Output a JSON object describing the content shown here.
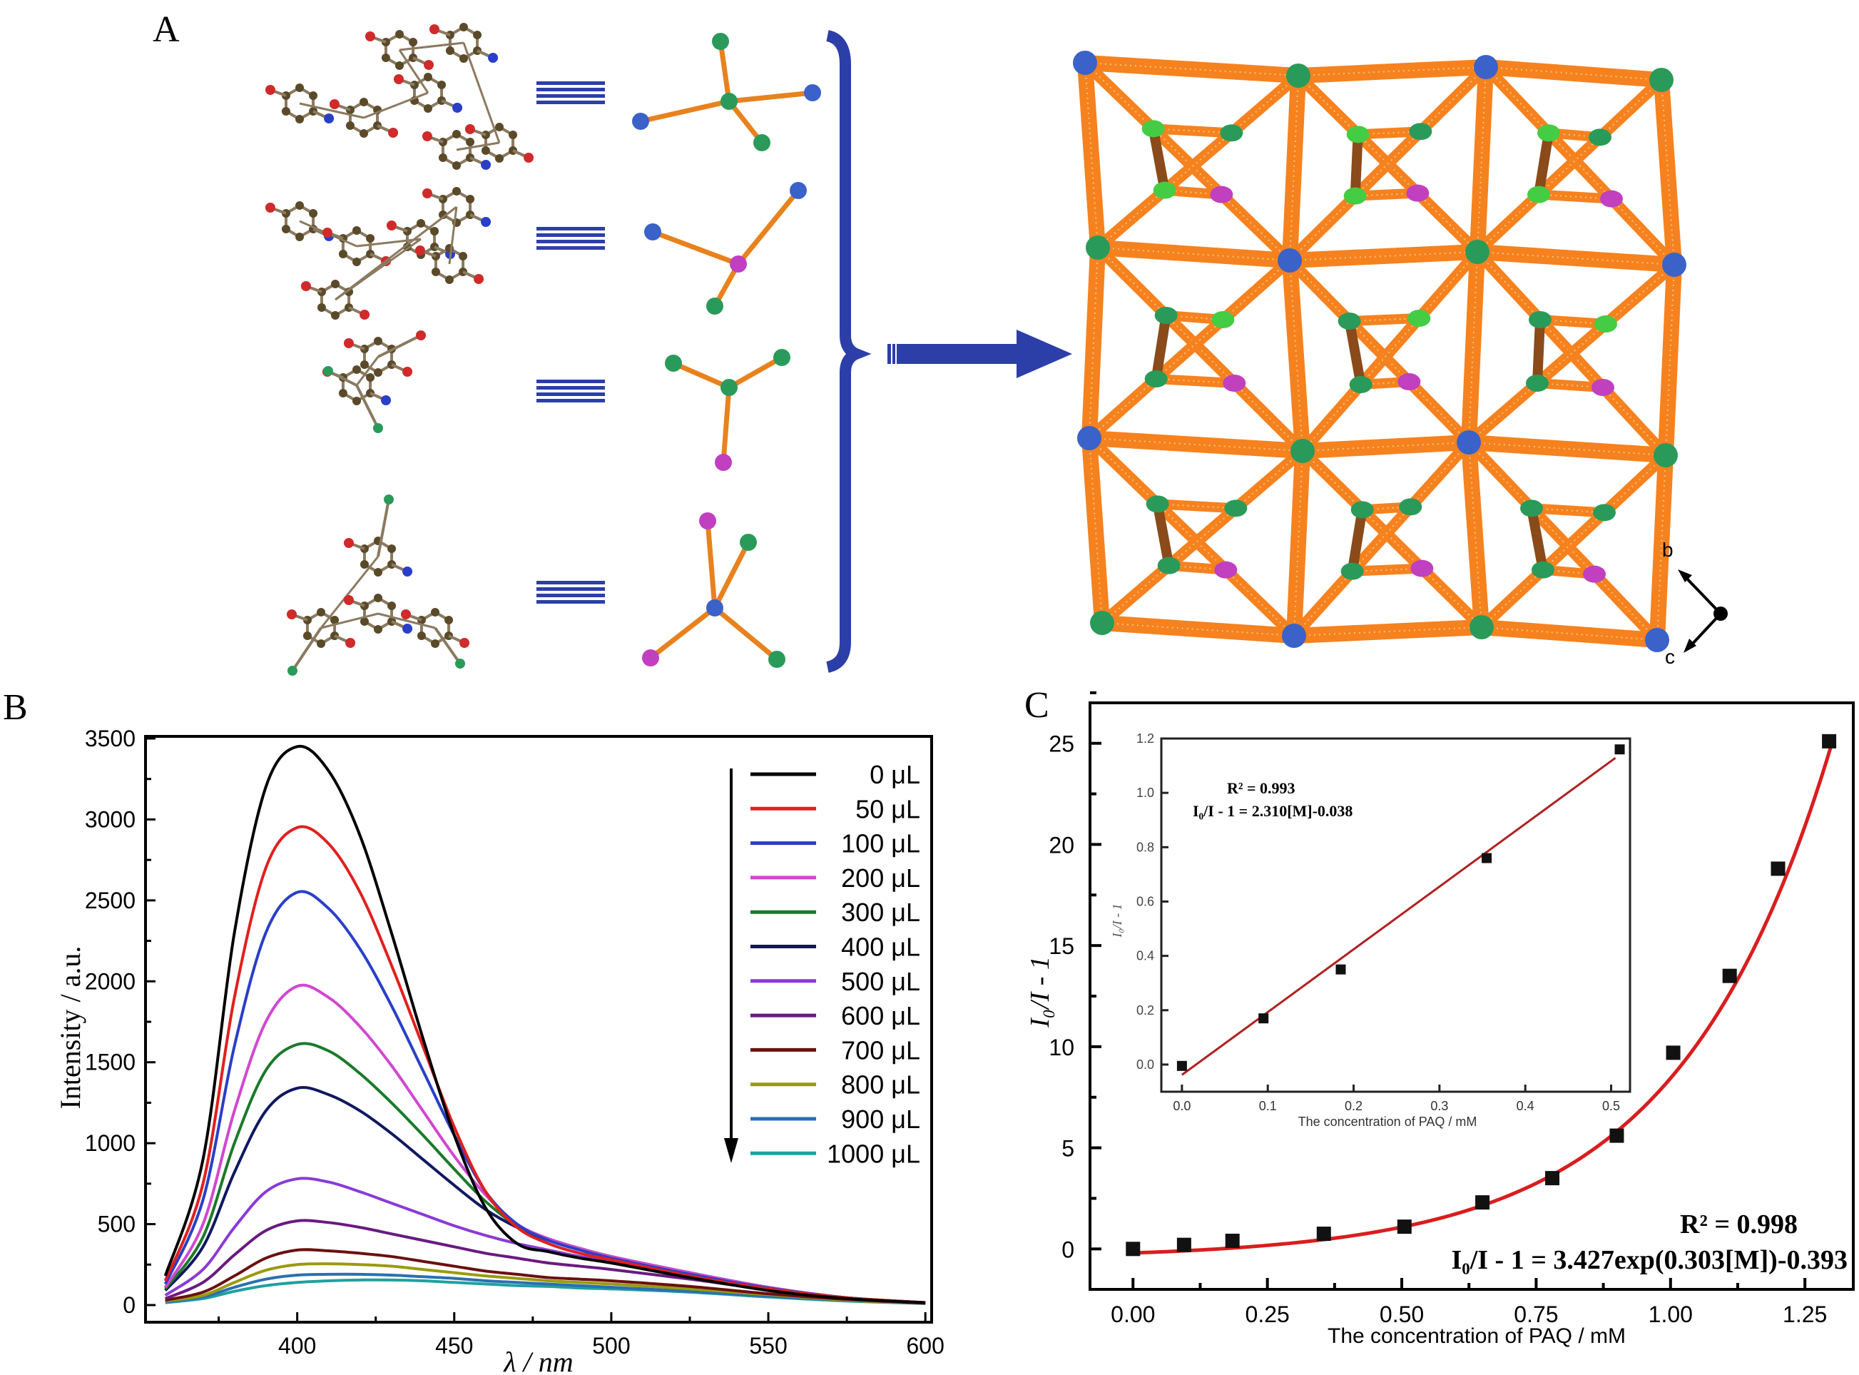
{
  "panels": {
    "a": "A",
    "b": "B",
    "c": "C"
  },
  "panel_a": {
    "axis_labels": {
      "b": "b",
      "c": "c"
    },
    "colors": {
      "framework": "#f5821f",
      "node_blue": "#3a62c8",
      "node_green": "#2a9a5a",
      "node_magenta": "#c040c0",
      "arrow": "#2c3fa8"
    }
  },
  "chart_data": [
    {
      "type": "line",
      "panel": "B",
      "xlabel": "λ / nm",
      "ylabel": "Intensity / a.u.",
      "xlim": [
        352,
        602
      ],
      "ylim": [
        0,
        3500
      ],
      "xticks": [
        "400",
        "450",
        "500",
        "550",
        "600"
      ],
      "yticks": [
        "0",
        "500",
        "1000",
        "1500",
        "2000",
        "2500",
        "3000",
        "3500"
      ],
      "grid": false,
      "legend_position": "top-right",
      "x": [
        358,
        370,
        380,
        390,
        400,
        410,
        420,
        430,
        440,
        450,
        460,
        470,
        480,
        490,
        500,
        525,
        550,
        575,
        600
      ],
      "series": [
        {
          "name": "0 μL",
          "color": "#000000",
          "values": [
            180,
            900,
            2300,
            3200,
            3450,
            3300,
            2900,
            2300,
            1650,
            1050,
            600,
            380,
            330,
            290,
            260,
            170,
            90,
            40,
            15
          ]
        },
        {
          "name": "50 μL",
          "color": "#e0201e",
          "values": [
            150,
            750,
            1900,
            2700,
            2950,
            2850,
            2550,
            2100,
            1600,
            1100,
            700,
            480,
            380,
            320,
            280,
            180,
            100,
            45,
            15
          ]
        },
        {
          "name": "100 μL",
          "color": "#2a3fc8",
          "values": [
            130,
            650,
            1600,
            2300,
            2550,
            2450,
            2200,
            1850,
            1450,
            1050,
            700,
            500,
            400,
            340,
            290,
            190,
            105,
            45,
            15
          ]
        },
        {
          "name": "200 μL",
          "color": "#d048d0",
          "values": [
            110,
            500,
            1200,
            1750,
            1970,
            1900,
            1720,
            1480,
            1200,
            920,
            680,
            500,
            410,
            350,
            300,
            200,
            110,
            45,
            15
          ]
        },
        {
          "name": "300 μL",
          "color": "#1a7a2a",
          "values": [
            100,
            420,
            1000,
            1450,
            1610,
            1570,
            1430,
            1250,
            1050,
            840,
            640,
            490,
            410,
            350,
            300,
            200,
            110,
            45,
            15
          ]
        },
        {
          "name": "400 μL",
          "color": "#101860",
          "values": [
            90,
            360,
            820,
            1200,
            1340,
            1300,
            1200,
            1060,
            900,
            740,
            590,
            480,
            400,
            350,
            300,
            200,
            110,
            45,
            15
          ]
        },
        {
          "name": "500 μL",
          "color": "#8a3ad8",
          "values": [
            60,
            220,
            480,
            700,
            780,
            760,
            700,
            630,
            560,
            490,
            430,
            380,
            340,
            300,
            270,
            190,
            105,
            45,
            15
          ]
        },
        {
          "name": "600 μL",
          "color": "#6a1a80",
          "values": [
            40,
            140,
            310,
            460,
            520,
            510,
            480,
            440,
            400,
            360,
            320,
            290,
            260,
            240,
            220,
            160,
            95,
            40,
            15
          ]
        },
        {
          "name": "700 μL",
          "color": "#6a1010",
          "values": [
            30,
            80,
            180,
            290,
            340,
            335,
            320,
            300,
            270,
            240,
            210,
            190,
            170,
            160,
            150,
            115,
            70,
            35,
            12
          ]
        },
        {
          "name": "800 μL",
          "color": "#9a9a10",
          "values": [
            25,
            60,
            140,
            215,
            250,
            255,
            250,
            240,
            220,
            200,
            180,
            165,
            150,
            140,
            130,
            100,
            65,
            30,
            12
          ]
        },
        {
          "name": "900 μL",
          "color": "#2a70b0",
          "values": [
            20,
            50,
            110,
            160,
            185,
            190,
            190,
            185,
            175,
            165,
            150,
            140,
            130,
            120,
            110,
            85,
            55,
            28,
            10
          ]
        },
        {
          "name": "1000 μL",
          "color": "#20a0a0",
          "values": [
            15,
            40,
            85,
            120,
            140,
            150,
            155,
            155,
            150,
            140,
            130,
            120,
            115,
            105,
            100,
            80,
            50,
            25,
            10
          ]
        }
      ]
    },
    {
      "type": "scatter",
      "panel": "C",
      "xlabel": "The concentration of PAQ / mM",
      "ylabel": "I₀/I - 1",
      "xlim": [
        -0.08,
        1.34
      ],
      "ylim": [
        -2,
        27
      ],
      "xticks": [
        "0.00",
        "0.25",
        "0.50",
        "0.75",
        "1.00",
        "1.25"
      ],
      "yticks": [
        "0",
        "5",
        "10",
        "15",
        "20",
        "25"
      ],
      "fit_color": "#d81e1e",
      "annotations": {
        "r2": "R² = 0.998",
        "equation": "I₀/I - 1 = 3.427exp(0.303[M])-0.393"
      },
      "x": [
        0,
        0.095,
        0.185,
        0.355,
        0.505,
        0.65,
        0.78,
        0.9,
        1.005,
        1.11,
        1.2,
        1.295
      ],
      "y": [
        0,
        0.2,
        0.4,
        0.75,
        1.1,
        2.3,
        3.5,
        5.6,
        9.7,
        13.5,
        18.8,
        25.1
      ]
    },
    {
      "type": "scatter",
      "panel": "C-inset",
      "xlabel": "The concentration of PAQ / mM",
      "ylabel": "I₀/I - 1",
      "xlim": [
        -0.024,
        0.522
      ],
      "ylim": [
        -0.1,
        1.2
      ],
      "xticks": [
        "0.0",
        "0.1",
        "0.2",
        "0.3",
        "0.4",
        "0.5"
      ],
      "yticks": [
        "0.0",
        "0.2",
        "0.4",
        "0.6",
        "0.8",
        "1.0",
        "1.2"
      ],
      "fit_color": "#b02020",
      "fit": {
        "slope": 2.31,
        "intercept": -0.038
      },
      "annotations": {
        "r2": "R² = 0.993",
        "equation": "I₀/I - 1 = 2.310[M]-0.038"
      },
      "x": [
        0,
        0.095,
        0.185,
        0.355,
        0.51
      ],
      "y": [
        -0.005,
        0.17,
        0.35,
        0.76,
        1.16
      ]
    }
  ]
}
